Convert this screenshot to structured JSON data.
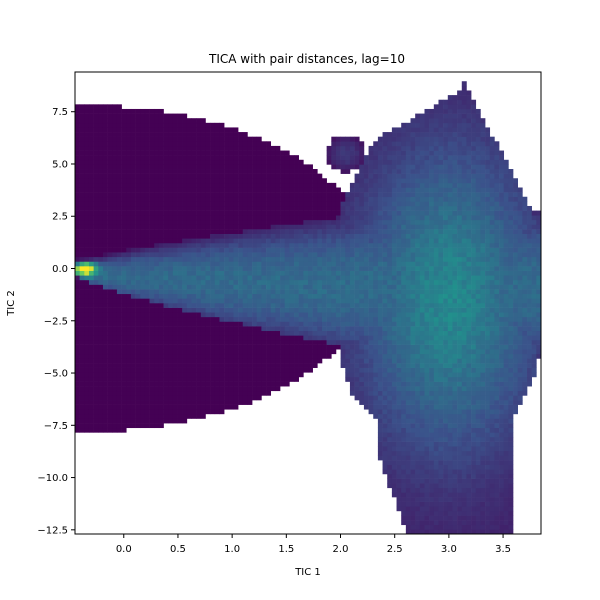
{
  "chart_data": {
    "type": "heatmap",
    "title": "TICA with pair distances, lag=10",
    "xlabel": "TIC 1",
    "ylabel": "TIC 2",
    "xlim": [
      -0.45,
      3.85
    ],
    "ylim": [
      -12.7,
      9.4
    ],
    "xticks": [
      0.0,
      0.5,
      1.0,
      1.5,
      2.0,
      2.5,
      3.0,
      3.5
    ],
    "xtick_labels": [
      "0.0",
      "0.5",
      "1.0",
      "1.5",
      "2.0",
      "2.5",
      "3.0",
      "3.5"
    ],
    "yticks": [
      -12.5,
      -10.0,
      -7.5,
      -5.0,
      -2.5,
      0.0,
      2.5,
      5.0,
      7.5
    ],
    "ytick_labels": [
      "−12.5",
      "−10.0",
      "−7.5",
      "−5.0",
      "−2.5",
      "0.0",
      "2.5",
      "5.0",
      "7.5"
    ],
    "grid": false,
    "colormap": "viridis",
    "colormap_stops": [
      "#440154",
      "#3b528b",
      "#21918c",
      "#5ec962",
      "#fde725"
    ],
    "density_peaks": [
      {
        "x": -0.38,
        "y": 0.0,
        "level": "maximum"
      },
      {
        "x": 3.0,
        "y": -1.5,
        "level": "high"
      }
    ],
    "bins": {
      "nx": 100,
      "ny": 100
    }
  }
}
